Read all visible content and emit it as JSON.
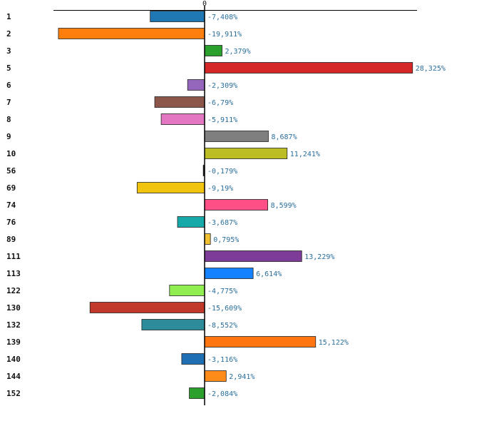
{
  "chart_data": {
    "type": "bar",
    "orientation": "horizontal",
    "zero_tick_label": "0",
    "grid": false,
    "categories": [
      "1",
      "2",
      "3",
      "5",
      "6",
      "7",
      "8",
      "9",
      "10",
      "56",
      "69",
      "74",
      "76",
      "89",
      "111",
      "113",
      "122",
      "130",
      "132",
      "139",
      "140",
      "144",
      "152"
    ],
    "values": [
      -7.408,
      -19.911,
      2.379,
      28.325,
      -2.309,
      -6.79,
      -5.911,
      8.687,
      11.241,
      -0.179,
      -9.19,
      8.599,
      -3.687,
      0.795,
      13.229,
      6.614,
      -4.775,
      -15.609,
      -8.552,
      15.122,
      -3.116,
      2.941,
      -2.084
    ],
    "value_labels": [
      "-7,408%",
      "-19,911%",
      "2,379%",
      "28,325%",
      "-2,309%",
      "-6,79%",
      "-5,911%",
      "8,687%",
      "11,241%",
      "-0,179%",
      "-9,19%",
      "8,599%",
      "-3,687%",
      "0,795%",
      "13,229%",
      "6,614%",
      "-4,775%",
      "-15,609%",
      "-8,552%",
      "15,122%",
      "-3,116%",
      "2,941%",
      "-2,084%"
    ],
    "colors": [
      "#1f77b4",
      "#ff7f0e",
      "#2ca02c",
      "#d62728",
      "#9467bd",
      "#8c564b",
      "#e377c2",
      "#7f7f7f",
      "#bcbd22",
      "#111111",
      "#f1c40f",
      "#ff4f87",
      "#17a9a9",
      "#f0c030",
      "#7d3c98",
      "#1481ff",
      "#90ee50",
      "#c0392b",
      "#2e8b9a",
      "#ff7510",
      "#1f6fb4",
      "#ff8c1a",
      "#2ca02c"
    ],
    "xlim": [
      -20.3,
      28.8
    ]
  }
}
